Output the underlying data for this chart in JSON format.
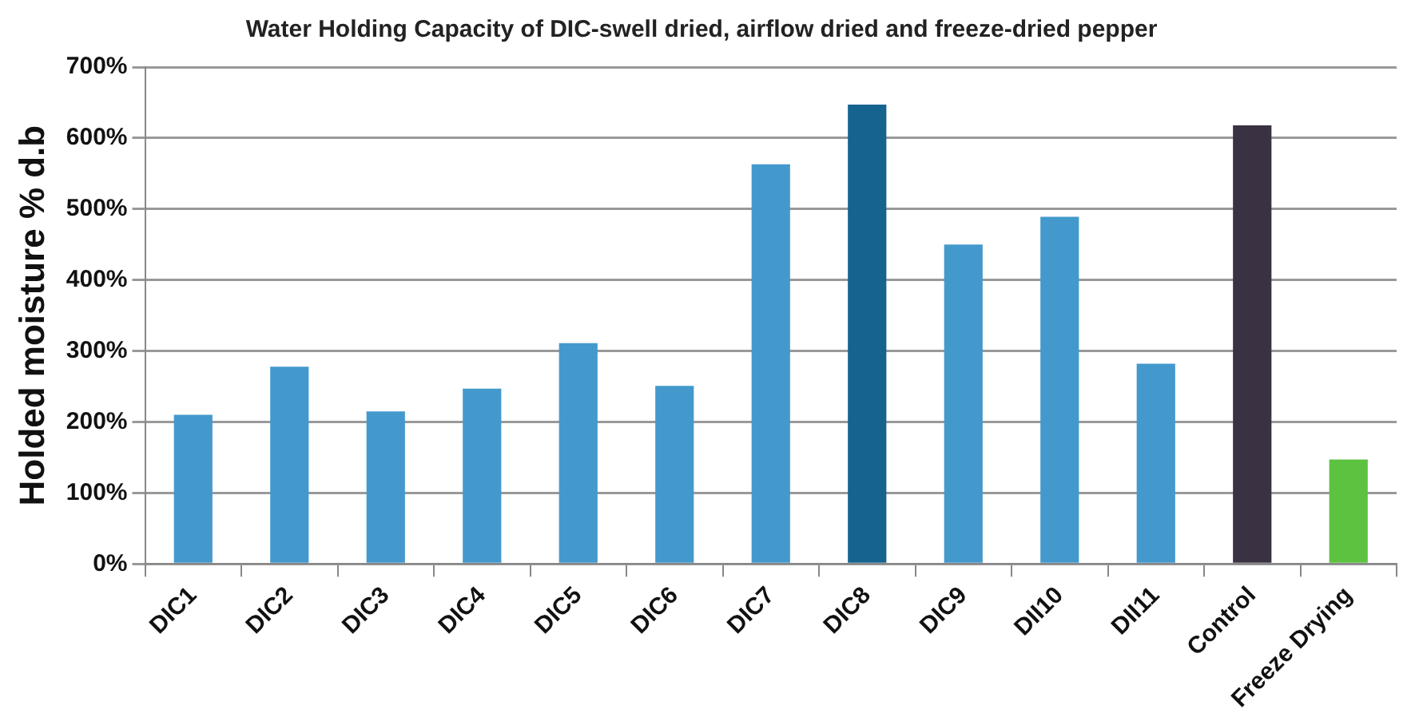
{
  "chart_data": {
    "type": "bar",
    "title": "Water Holding Capacity of DIC-swell dried, airflow dried and freeze-dried pepper",
    "ylabel": "Holded moisture % d.b",
    "categories": [
      "DIC1",
      "DIC2",
      "DIC3",
      "DIC4",
      "DIC5",
      "DIC6",
      "DIC7",
      "DIC8",
      "DIC9",
      "DII10",
      "DII11",
      "Control",
      "Freeze Drying"
    ],
    "values": [
      210,
      278,
      215,
      247,
      311,
      251,
      563,
      647,
      450,
      489,
      282,
      618,
      147
    ],
    "colors": [
      "#4499cc",
      "#4499cc",
      "#4499cc",
      "#4499cc",
      "#4499cc",
      "#4499cc",
      "#4499cc",
      "#16638f",
      "#4499cc",
      "#4499cc",
      "#4499cc",
      "#3a3242",
      "#5cc240"
    ],
    "ylim": [
      0,
      700
    ],
    "yticks": [
      {
        "value": 0,
        "label": "0%"
      },
      {
        "value": 100,
        "label": "100%"
      },
      {
        "value": 200,
        "label": "200%"
      },
      {
        "value": 300,
        "label": "300%"
      },
      {
        "value": 400,
        "label": "400%"
      },
      {
        "value": 500,
        "label": "500%"
      },
      {
        "value": 600,
        "label": "600%"
      },
      {
        "value": 700,
        "label": "700%"
      }
    ],
    "grid": "y",
    "legend": false
  }
}
